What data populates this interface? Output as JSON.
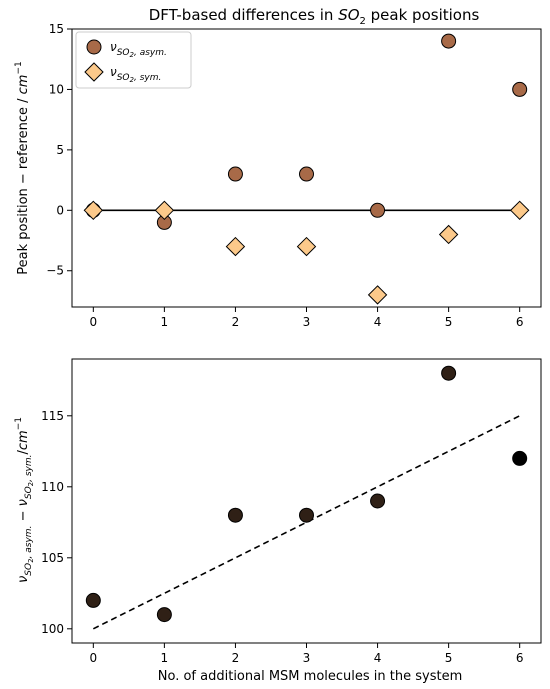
{
  "chart_data": [
    {
      "type": "scatter",
      "title": "DFT-based differences in SO₂ peak positions",
      "xlabel": "",
      "ylabel": "Peak position − reference / cm⁻¹",
      "xlim": [
        -0.3,
        6.3
      ],
      "ylim": [
        -8,
        15
      ],
      "xticks": [
        0,
        1,
        2,
        3,
        4,
        5,
        6
      ],
      "yticks": [
        -5,
        0,
        5,
        10,
        15
      ],
      "grid": false,
      "legend_position": "top-left",
      "reference_line": {
        "y": 0,
        "color": "#000000"
      },
      "series": [
        {
          "name": "ν SO₂, asym.",
          "marker": "circle",
          "color": "#a86a48",
          "x": [
            0,
            1,
            2,
            3,
            4,
            5,
            6
          ],
          "y": [
            0,
            -1,
            3,
            3,
            0,
            14,
            10
          ]
        },
        {
          "name": "ν SO₂, sym.",
          "marker": "diamond",
          "color": "#fcc98a",
          "x": [
            0,
            1,
            2,
            3,
            4,
            5,
            6
          ],
          "y": [
            0,
            0,
            -3,
            -3,
            -7,
            -2,
            0
          ]
        }
      ]
    },
    {
      "type": "scatter",
      "title": "",
      "xlabel": "No. of additional MSM molecules in the system",
      "ylabel": "ν SO₂, asym. − ν SO₂, sym. /cm⁻¹",
      "xlim": [
        -0.3,
        6.3
      ],
      "ylim": [
        99,
        119
      ],
      "xticks": [
        0,
        1,
        2,
        3,
        4,
        5,
        6
      ],
      "yticks": [
        100,
        105,
        110,
        115
      ],
      "grid": false,
      "series": [
        {
          "marker": "circle",
          "colors": [
            "#2f2016",
            "#2f2016",
            "#2f2016",
            "#2f2016",
            "#2f2016",
            "#2f2016",
            "#000000"
          ],
          "x": [
            0,
            1,
            2,
            3,
            4,
            5,
            6
          ],
          "y": [
            102,
            101,
            108,
            108,
            109,
            118,
            112
          ]
        }
      ],
      "fit_line": {
        "style": "dashed",
        "x": [
          0,
          6
        ],
        "y": [
          100,
          115
        ],
        "color": "#000000"
      }
    }
  ]
}
